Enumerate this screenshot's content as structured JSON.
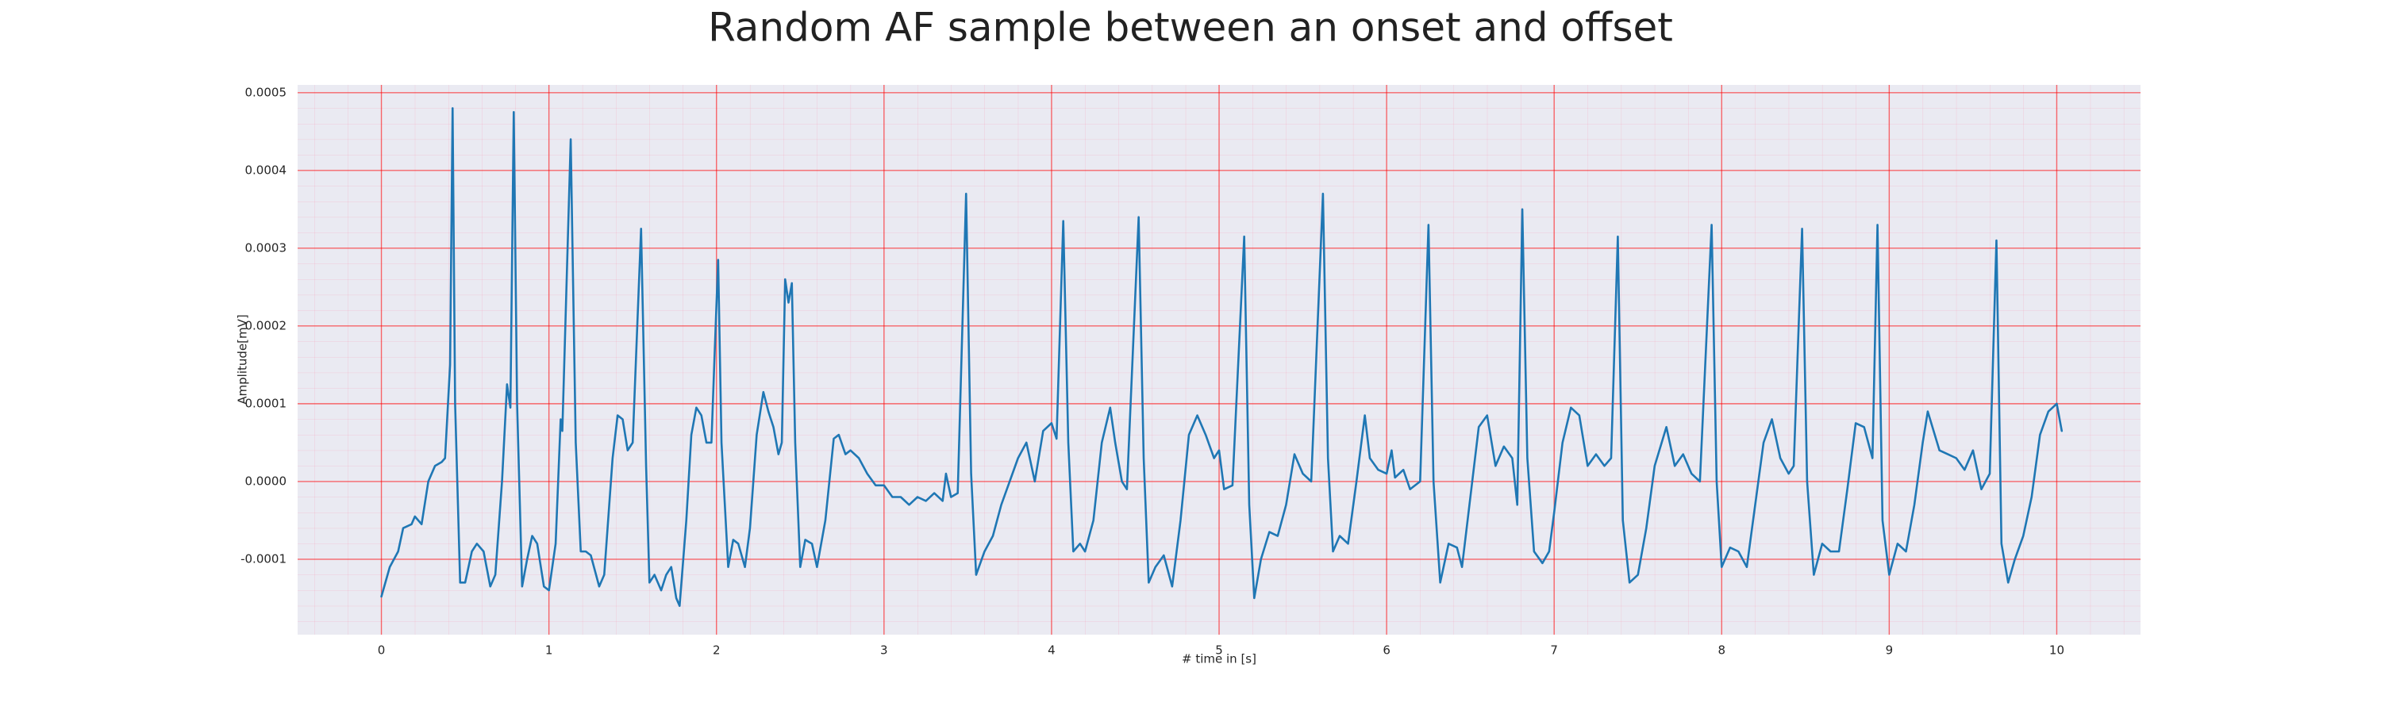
{
  "chart_data": {
    "type": "line",
    "title": "Random AF sample between an onset and offset",
    "xlabel": "# time in [s]",
    "ylabel": "Amplitude[mV]",
    "x": [
      0,
      0.05,
      0.1,
      0.13,
      0.18,
      0.2,
      0.24,
      0.28,
      0.32,
      0.36,
      0.38,
      0.41,
      0.425,
      0.44,
      0.47,
      0.5,
      0.54,
      0.57,
      0.61,
      0.65,
      0.68,
      0.72,
      0.75,
      0.77,
      0.79,
      0.81,
      0.84,
      0.87,
      0.9,
      0.93,
      0.97,
      1.0,
      1.04,
      1.07,
      1.08,
      1.13,
      1.16,
      1.19,
      1.22,
      1.25,
      1.3,
      1.33,
      1.38,
      1.41,
      1.44,
      1.47,
      1.5,
      1.55,
      1.58,
      1.6,
      1.63,
      1.67,
      1.7,
      1.73,
      1.76,
      1.78,
      1.82,
      1.85,
      1.88,
      1.91,
      1.94,
      1.97,
      1.99,
      2.01,
      2.03,
      2.07,
      2.1,
      2.13,
      2.17,
      2.2,
      2.24,
      2.28,
      2.31,
      2.34,
      2.37,
      2.39,
      2.41,
      2.43,
      2.45,
      2.47,
      2.5,
      2.53,
      2.57,
      2.6,
      2.65,
      2.7,
      2.73,
      2.77,
      2.8,
      2.85,
      2.9,
      2.95,
      3.0,
      3.05,
      3.1,
      3.15,
      3.2,
      3.25,
      3.3,
      3.35,
      3.37,
      3.4,
      3.44,
      3.49,
      3.52,
      3.55,
      3.6,
      3.65,
      3.7,
      3.8,
      3.85,
      3.9,
      3.95,
      4.0,
      4.03,
      4.07,
      4.1,
      4.13,
      4.17,
      4.2,
      4.25,
      4.3,
      4.35,
      4.38,
      4.42,
      4.45,
      4.52,
      4.55,
      4.58,
      4.62,
      4.67,
      4.72,
      4.77,
      4.82,
      4.87,
      4.92,
      4.97,
      5.0,
      5.03,
      5.08,
      5.15,
      5.18,
      5.21,
      5.25,
      5.3,
      5.35,
      5.4,
      5.45,
      5.5,
      5.55,
      5.62,
      5.65,
      5.68,
      5.72,
      5.77,
      5.82,
      5.87,
      5.9,
      5.95,
      6.0,
      6.03,
      6.05,
      6.1,
      6.14,
      6.2,
      6.25,
      6.28,
      6.32,
      6.37,
      6.42,
      6.45,
      6.5,
      6.55,
      6.6,
      6.65,
      6.7,
      6.75,
      6.78,
      6.81,
      6.84,
      6.88,
      6.93,
      6.97,
      7.0,
      7.05,
      7.1,
      7.15,
      7.2,
      7.25,
      7.3,
      7.34,
      7.38,
      7.41,
      7.45,
      7.5,
      7.55,
      7.6,
      7.67,
      7.72,
      7.77,
      7.82,
      7.87,
      7.94,
      7.97,
      8.0,
      8.05,
      8.1,
      8.15,
      8.2,
      8.25,
      8.3,
      8.35,
      8.4,
      8.43,
      8.48,
      8.51,
      8.55,
      8.6,
      8.65,
      8.7,
      8.75,
      8.8,
      8.85,
      8.9,
      8.93,
      8.96,
      9.0,
      9.05,
      9.1,
      9.15,
      9.2,
      9.23,
      9.3,
      9.35,
      9.4,
      9.45,
      9.5,
      9.55,
      9.6,
      9.64,
      9.67,
      9.71,
      9.75,
      9.8,
      9.85,
      9.9,
      9.95,
      10.0,
      10.03
    ],
    "values": [
      -0.000148,
      -0.00011,
      -9e-05,
      -6e-05,
      -5.5e-05,
      -4.5e-05,
      -5.5e-05,
      0,
      2e-05,
      2.5e-05,
      3e-05,
      0.00015,
      0.00048,
      0.0001,
      -0.00013,
      -0.00013,
      -9e-05,
      -8e-05,
      -9e-05,
      -0.000135,
      -0.00012,
      0,
      0.000125,
      9.5e-05,
      0.000475,
      0.0001,
      -0.000135,
      -0.0001,
      -7e-05,
      -8e-05,
      -0.000135,
      -0.00014,
      -8e-05,
      8e-05,
      6.5e-05,
      0.00044,
      5e-05,
      -9e-05,
      -9e-05,
      -9.5e-05,
      -0.000135,
      -0.00012,
      3e-05,
      8.5e-05,
      8e-05,
      4e-05,
      5e-05,
      0.000325,
      2e-05,
      -0.00013,
      -0.00012,
      -0.00014,
      -0.00012,
      -0.00011,
      -0.00015,
      -0.00016,
      -5e-05,
      6e-05,
      9.5e-05,
      8.5e-05,
      5e-05,
      5e-05,
      0.00017,
      0.000285,
      5e-05,
      -0.00011,
      -7.5e-05,
      -8e-05,
      -0.00011,
      -6e-05,
      6e-05,
      0.000115,
      9e-05,
      7e-05,
      3.5e-05,
      5e-05,
      0.00026,
      0.00023,
      0.000255,
      5e-05,
      -0.00011,
      -7.5e-05,
      -8e-05,
      -0.00011,
      -5e-05,
      5.5e-05,
      6e-05,
      3.5e-05,
      4e-05,
      3e-05,
      1e-05,
      -5e-06,
      -5e-06,
      -2e-05,
      -2e-05,
      -3e-05,
      -2e-05,
      -2.5e-05,
      -1.5e-05,
      -2.5e-05,
      1e-05,
      -2e-05,
      -1.5e-05,
      0.00037,
      1e-05,
      -0.00012,
      -9e-05,
      -7e-05,
      -3e-05,
      3e-05,
      5e-05,
      0,
      6.5e-05,
      7.5e-05,
      5.5e-05,
      0.000335,
      5e-05,
      -9e-05,
      -8e-05,
      -9e-05,
      -5e-05,
      5e-05,
      9.5e-05,
      5e-05,
      0,
      -1e-05,
      0.00034,
      3e-05,
      -0.00013,
      -0.00011,
      -9.5e-05,
      -0.000135,
      -5e-05,
      6e-05,
      8.5e-05,
      6e-05,
      3e-05,
      4e-05,
      -1e-05,
      -5e-06,
      0.000315,
      -3e-05,
      -0.00015,
      -0.0001,
      -6.5e-05,
      -7e-05,
      -3e-05,
      3.5e-05,
      1e-05,
      0,
      0.00037,
      3e-05,
      -9e-05,
      -7e-05,
      -8e-05,
      0,
      8.5e-05,
      3e-05,
      1.5e-05,
      1e-05,
      4e-05,
      5e-06,
      1.5e-05,
      -1e-05,
      0,
      0.00033,
      0,
      -0.00013,
      -8e-05,
      -8.5e-05,
      -0.00011,
      -2e-05,
      7e-05,
      8.5e-05,
      2e-05,
      4.5e-05,
      3e-05,
      -3e-05,
      0.00035,
      3e-05,
      -9e-05,
      -0.000105,
      -9e-05,
      -4e-05,
      5e-05,
      9.5e-05,
      8.5e-05,
      2e-05,
      3.5e-05,
      2e-05,
      3e-05,
      0.000315,
      -5e-05,
      -0.00013,
      -0.00012,
      -6e-05,
      2e-05,
      7e-05,
      2e-05,
      3.5e-05,
      1e-05,
      0,
      0.00033,
      0,
      -0.00011,
      -8.5e-05,
      -9e-05,
      -0.00011,
      -3e-05,
      5e-05,
      8e-05,
      3e-05,
      1e-05,
      2e-05,
      0.000325,
      0,
      -0.00012,
      -8e-05,
      -9e-05,
      -9e-05,
      -1e-05,
      7.5e-05,
      7e-05,
      3e-05,
      0.00033,
      -5e-05,
      -0.00012,
      -8e-05,
      -9e-05,
      -3e-05,
      5e-05,
      9e-05,
      4e-05,
      3.5e-05,
      3e-05,
      1.5e-05,
      4e-05,
      -1e-05,
      1e-05,
      0.00031,
      -8e-05,
      -0.00013,
      -0.0001,
      -7e-05,
      -2e-05,
      6e-05,
      9e-05,
      0.0001,
      6.5e-05
    ],
    "color": "#1f77b4",
    "xlim": [
      -0.5,
      10.5
    ],
    "ylim": [
      -0.000197,
      0.00051
    ],
    "xticks": [
      0,
      1,
      2,
      3,
      4,
      5,
      6,
      7,
      8,
      9,
      10
    ],
    "yticks": [
      -0.0001,
      {
        "value": 0,
        "label": "0.0000"
      },
      0.0001,
      0.0002,
      0.0003,
      0.0004,
      0.0005
    ],
    "grid": true
  }
}
